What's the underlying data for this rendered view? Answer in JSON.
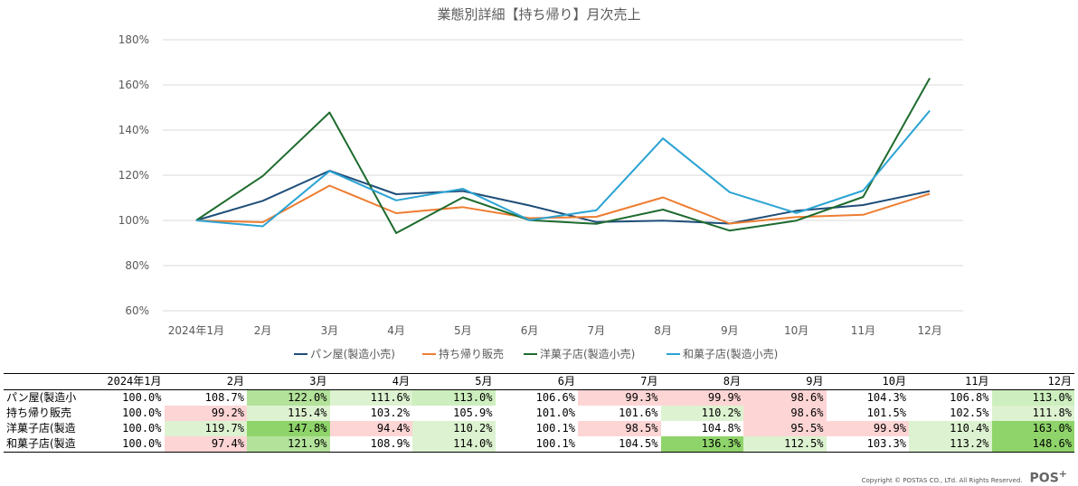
{
  "chart_data": {
    "type": "line",
    "title": "業態別詳細【持ち帰り】月次売上",
    "categories": [
      "2024年1月",
      "2月",
      "3月",
      "4月",
      "5月",
      "6月",
      "7月",
      "8月",
      "9月",
      "10月",
      "11月",
      "12月"
    ],
    "yticks": [
      "60%",
      "80%",
      "100%",
      "120%",
      "140%",
      "160%",
      "180%"
    ],
    "ylim": [
      60,
      180
    ],
    "series": [
      {
        "name": "パン屋(製造小売)",
        "color": "#1f4e79",
        "values": [
          100.0,
          108.7,
          122.0,
          111.6,
          113.0,
          106.6,
          99.3,
          99.9,
          98.6,
          104.3,
          106.8,
          113.0
        ]
      },
      {
        "name": "持ち帰り販売",
        "color": "#ed7d31",
        "values": [
          100.0,
          99.2,
          115.4,
          103.2,
          105.9,
          101.0,
          101.6,
          110.2,
          98.6,
          101.5,
          102.5,
          111.8
        ]
      },
      {
        "name": "洋菓子店(製造小売)",
        "color": "#1e6b2e",
        "values": [
          100.0,
          119.7,
          147.8,
          94.4,
          110.2,
          100.1,
          98.5,
          104.8,
          95.5,
          99.9,
          110.4,
          163.0
        ]
      },
      {
        "name": "和菓子店(製造小売)",
        "color": "#2aa3d3",
        "values": [
          100.0,
          97.4,
          121.9,
          108.9,
          114.0,
          100.1,
          104.5,
          136.3,
          112.5,
          103.3,
          113.2,
          148.6
        ]
      }
    ]
  },
  "table": {
    "headers": [
      "2024年1月",
      "2月",
      "3月",
      "4月",
      "5月",
      "6月",
      "7月",
      "8月",
      "9月",
      "10月",
      "11月",
      "12月"
    ],
    "rows": [
      {
        "label": "パン屋(製造小",
        "cells": [
          "100.0%",
          "108.7%",
          "122.0%",
          "111.6%",
          "113.0%",
          "106.6%",
          "99.3%",
          "99.9%",
          "98.6%",
          "104.3%",
          "106.8%",
          "113.0%"
        ],
        "bg": [
          "#ffffff",
          "#ffffff",
          "#b3e29a",
          "#ddf2d0",
          "#cdeebe",
          "#ffffff",
          "#fdd5d5",
          "#fdd5d5",
          "#fdd5d5",
          "#ffffff",
          "#ffffff",
          "#cdeebe"
        ]
      },
      {
        "label": "持ち帰り販売",
        "cells": [
          "100.0%",
          "99.2%",
          "115.4%",
          "103.2%",
          "105.9%",
          "101.0%",
          "101.6%",
          "110.2%",
          "98.6%",
          "101.5%",
          "102.5%",
          "111.8%"
        ],
        "bg": [
          "#ffffff",
          "#fdd5d5",
          "#ddf2d0",
          "#ffffff",
          "#ffffff",
          "#ffffff",
          "#ffffff",
          "#ddf2d0",
          "#fdd5d5",
          "#ffffff",
          "#ffffff",
          "#ddf2d0"
        ]
      },
      {
        "label": "洋菓子店(製造",
        "cells": [
          "100.0%",
          "119.7%",
          "147.8%",
          "94.4%",
          "110.2%",
          "100.1%",
          "98.5%",
          "104.8%",
          "95.5%",
          "99.9%",
          "110.4%",
          "163.0%"
        ],
        "bg": [
          "#ffffff",
          "#ddf2d0",
          "#8fd46a",
          "#fdd5d5",
          "#ddf2d0",
          "#ffffff",
          "#fdd5d5",
          "#ffffff",
          "#fdd5d5",
          "#fdd5d5",
          "#ddf2d0",
          "#8fd46a"
        ]
      },
      {
        "label": "和菓子店(製造",
        "cells": [
          "100.0%",
          "97.4%",
          "121.9%",
          "108.9%",
          "114.0%",
          "100.1%",
          "104.5%",
          "136.3%",
          "112.5%",
          "103.3%",
          "113.2%",
          "148.6%"
        ],
        "bg": [
          "#ffffff",
          "#fdd5d5",
          "#b3e29a",
          "#ffffff",
          "#ddf2d0",
          "#ffffff",
          "#ffffff",
          "#8fd46a",
          "#ddf2d0",
          "#ffffff",
          "#ddf2d0",
          "#8fd46a"
        ]
      }
    ]
  },
  "footer": {
    "copyright": "Copyright © POSTAS CO., LTd. All Rights Reserved.",
    "logo": "POS",
    "logo_sup": "+"
  }
}
